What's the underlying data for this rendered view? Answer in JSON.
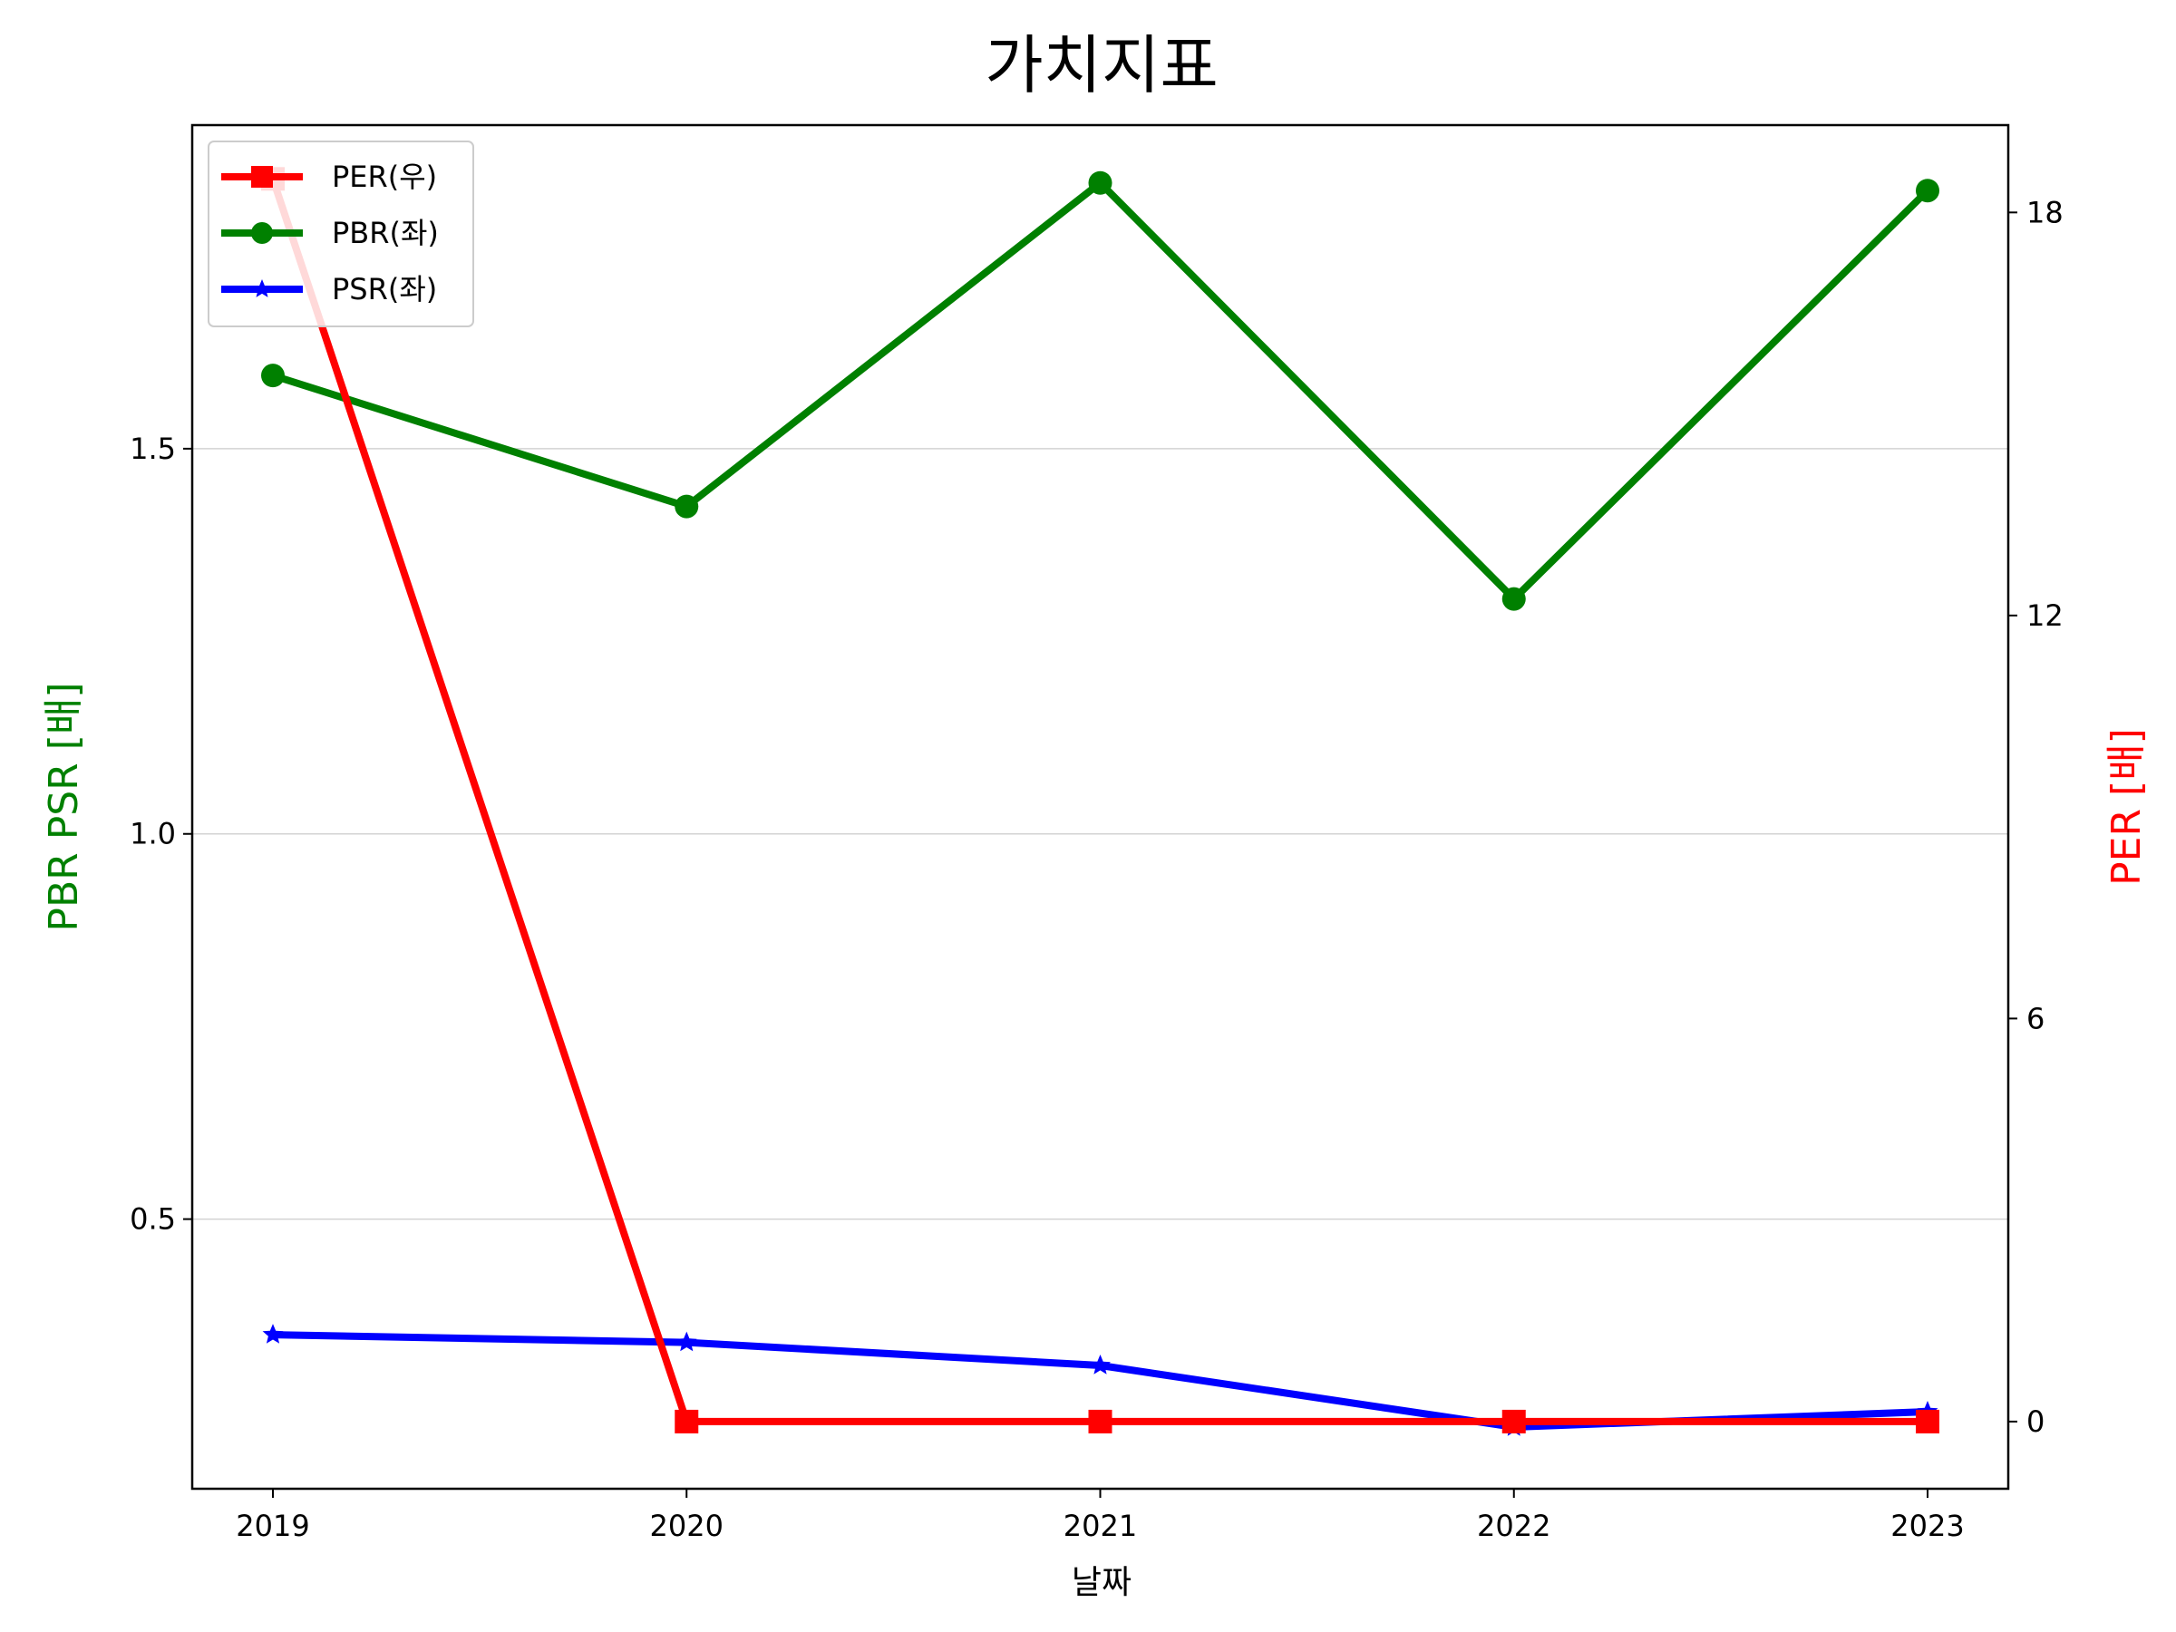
{
  "chart_data": {
    "type": "line",
    "title": "가치지표",
    "xlabel": "날짜",
    "ylabel_left": "PBR PSR [배]",
    "ylabel_right": "PER [배]",
    "categories": [
      "2019",
      "2020",
      "2021",
      "2022",
      "2023"
    ],
    "ylim_left": [
      0.15,
      1.92
    ],
    "ylim_right": [
      -1.0,
      19.3
    ],
    "yticks_left": [
      0.5,
      1.0,
      1.5
    ],
    "yticks_right": [
      0,
      6,
      12,
      18
    ],
    "grid": "horizontal",
    "legend": "top-left",
    "series": [
      {
        "name": "PER(우)",
        "axis": "right",
        "color": "#ff0000",
        "marker": "square",
        "values": [
          18.5,
          0,
          0,
          0,
          0
        ]
      },
      {
        "name": "PBR(좌)",
        "axis": "left",
        "color": "#008000",
        "marker": "circle",
        "values": [
          1.595,
          1.425,
          1.845,
          1.305,
          1.835
        ]
      },
      {
        "name": "PSR(좌)",
        "axis": "left",
        "color": "#0000ff",
        "marker": "star",
        "values": [
          0.35,
          0.34,
          0.31,
          0.23,
          0.25
        ]
      }
    ]
  }
}
